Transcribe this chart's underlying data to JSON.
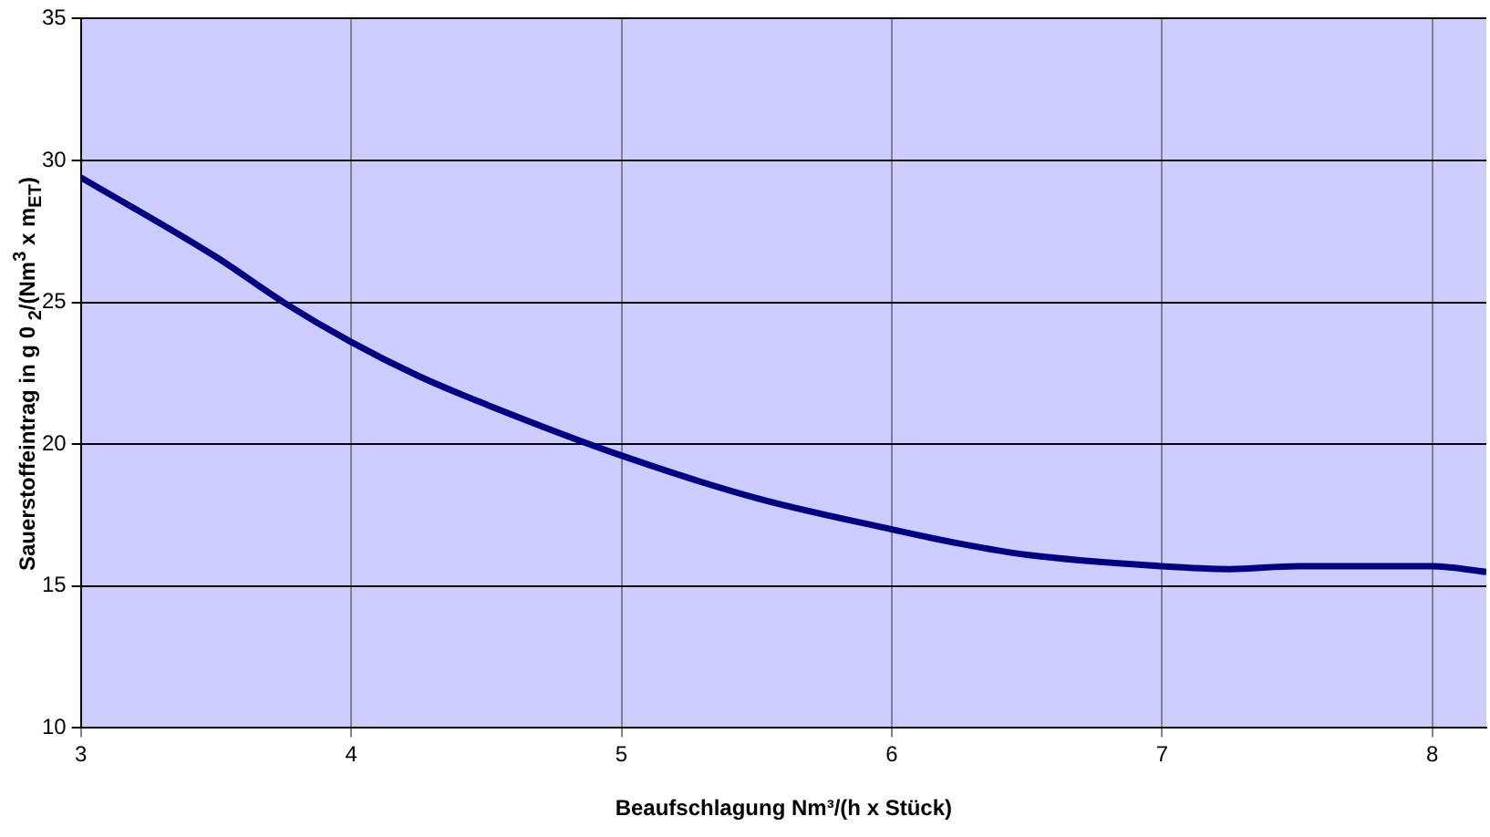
{
  "chart_data": {
    "type": "line",
    "xlabel": "Beaufschlagung Nm³/(h x Stück)",
    "ylabel": "Sauerstoffeintrag in g 0 $_{2}$/(Nm$^{3}$ x m$_{ET}$)",
    "series": [
      {
        "color": "#000080",
        "x": [
          3,
          3.5,
          3.75,
          4,
          4.25,
          4.5,
          5,
          5.5,
          6,
          6.25,
          6.5,
          7,
          7.25,
          7.5,
          8,
          8.2
        ],
        "values": [
          29.4,
          26.6,
          25.0,
          23.6,
          22.4,
          21.4,
          19.6,
          18.1,
          17.0,
          16.5,
          16.1,
          15.7,
          15.6,
          15.7,
          15.7,
          15.5
        ]
      }
    ],
    "xlim": [
      3,
      8.2
    ],
    "xticks": [
      3,
      4,
      5,
      6,
      7,
      8
    ],
    "ylim": [
      10,
      35
    ],
    "yticks": [
      10,
      15,
      20,
      25,
      30,
      35
    ],
    "grid": true,
    "legend": false,
    "marker": "none",
    "line_style": "solid"
  }
}
